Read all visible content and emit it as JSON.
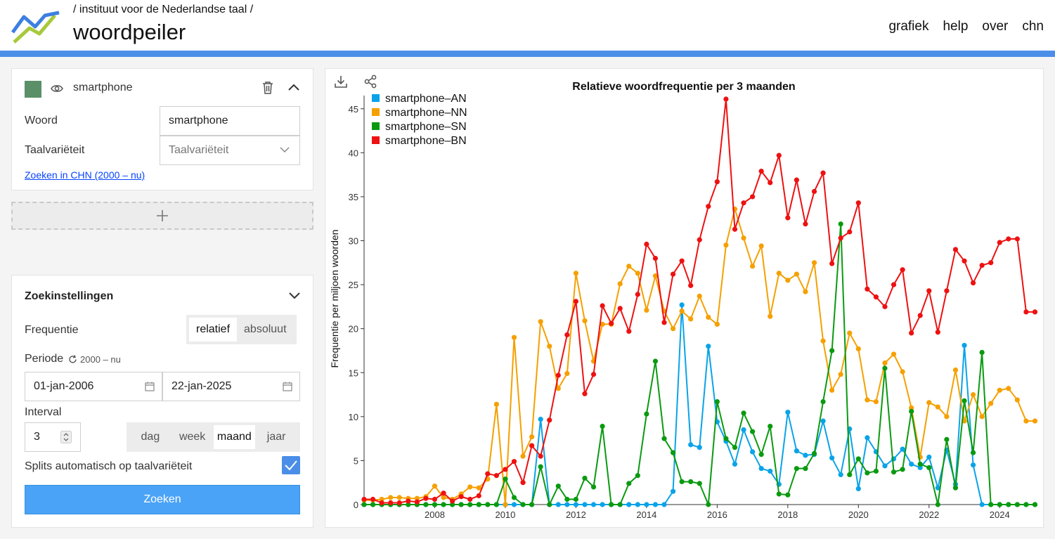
{
  "header": {
    "breadcrumb": "/ instituut voor de Nederlandse taal /",
    "title": "woordpeiler",
    "nav": [
      "grafiek",
      "help",
      "over",
      "chn"
    ]
  },
  "word_panel": {
    "word_name": "smartphone",
    "swatch_color": "#5a8f68",
    "word_label": "Woord",
    "word_value": "smartphone",
    "variety_label": "Taalvariëteit",
    "variety_placeholder": "Taalvariëteit",
    "chn_link": "Zoeken in CHN (2000 – nu)"
  },
  "settings": {
    "title": "Zoekinstellingen",
    "frequency_label": "Frequentie",
    "frequency_options": [
      "relatief",
      "absoluut"
    ],
    "frequency_selected": "relatief",
    "period_label": "Periode",
    "period_reset": "2000 – nu",
    "date_from": "01-jan-2006",
    "date_to": "22-jan-2025",
    "interval_label": "Interval",
    "interval_value": "3",
    "interval_options": [
      "dag",
      "week",
      "maand",
      "jaar"
    ],
    "interval_selected": "maand",
    "split_label": "Splits automatisch op taalvariëteit",
    "split_checked": true,
    "search_button": "Zoeken"
  },
  "chart_data": {
    "type": "line",
    "title": "Relatieve woordfrequentie per 3 maanden",
    "ylabel": "Frequentie per miljoen woorden",
    "xlabel": "",
    "xlim": [
      2006.0,
      2025.05
    ],
    "ylim": [
      0,
      46.5
    ],
    "x_ticks": [
      "2008",
      "2010",
      "2012",
      "2014",
      "2016",
      "2018",
      "2020",
      "2022",
      "2024"
    ],
    "y_ticks": [
      "0",
      "5",
      "10",
      "15",
      "20",
      "25",
      "30",
      "35",
      "40",
      "45"
    ],
    "legend_position": "top-left",
    "x": [
      2006.0,
      2006.25,
      2006.5,
      2006.75,
      2007.0,
      2007.25,
      2007.5,
      2007.75,
      2008.0,
      2008.25,
      2008.5,
      2008.75,
      2009.0,
      2009.25,
      2009.5,
      2009.75,
      2010.0,
      2010.25,
      2010.5,
      2010.75,
      2011.0,
      2011.25,
      2011.5,
      2011.75,
      2012.0,
      2012.25,
      2012.5,
      2012.75,
      2013.0,
      2013.25,
      2013.5,
      2013.75,
      2014.0,
      2014.25,
      2014.5,
      2014.75,
      2015.0,
      2015.25,
      2015.5,
      2015.75,
      2016.0,
      2016.25,
      2016.5,
      2016.75,
      2017.0,
      2017.25,
      2017.5,
      2017.75,
      2018.0,
      2018.25,
      2018.5,
      2018.75,
      2019.0,
      2019.25,
      2019.5,
      2019.75,
      2020.0,
      2020.25,
      2020.5,
      2020.75,
      2021.0,
      2021.25,
      2021.5,
      2021.75,
      2022.0,
      2022.25,
      2022.5,
      2022.75,
      2023.0,
      2023.25,
      2023.5,
      2023.75,
      2024.0,
      2024.25,
      2024.5,
      2024.75,
      2025.0
    ],
    "series": [
      {
        "name": "smartphone–AN",
        "color": "#0aa3e8",
        "values": [
          0,
          0,
          0,
          0,
          0,
          0,
          0,
          0,
          0,
          0,
          0,
          0,
          0,
          0,
          0,
          0,
          0,
          0,
          0,
          0,
          9.7,
          0,
          0,
          0,
          0,
          0,
          0,
          0,
          0,
          0,
          0,
          0,
          0,
          0,
          0,
          1.5,
          22.7,
          6.8,
          6.5,
          18,
          9.4,
          7.2,
          4.6,
          8.5,
          6,
          4.1,
          3.8,
          2.3,
          10.5,
          6.1,
          5.6,
          5.7,
          9.5,
          5.3,
          3.4,
          8.6,
          1.8,
          7.6,
          6,
          4.4,
          5.2,
          6.3,
          4.6,
          4.2,
          5.4,
          1.9,
          6.2,
          2.3,
          18.1,
          4.5,
          0,
          0,
          0,
          0,
          0,
          0,
          0
        ]
      },
      {
        "name": "smartphone–NN",
        "color": "#f5a000",
        "values": [
          0.5,
          0.5,
          0.6,
          0.8,
          0.8,
          0.7,
          0.7,
          0.9,
          2.1,
          0.8,
          0.6,
          1.2,
          2,
          1.9,
          2.9,
          11.4,
          0,
          19,
          5.5,
          7.7,
          20.8,
          18,
          13.2,
          14.9,
          26.3,
          20.9,
          16.3,
          20.5,
          20.5,
          25.1,
          27.1,
          26.3,
          22.1,
          26,
          22,
          20,
          22,
          21.1,
          23.7,
          21.3,
          20.5,
          29.5,
          33.6,
          30.3,
          27.1,
          29.4,
          21.4,
          26.3,
          25.5,
          26.2,
          24.2,
          27.5,
          18.6,
          13,
          14.8,
          19.5,
          17.7,
          11.9,
          11.7,
          16.1,
          17.1,
          15.1,
          11,
          5.4,
          11.6,
          11.1,
          10,
          15.3,
          9.5,
          12.5,
          10,
          11.5,
          13,
          13.2,
          11.9,
          9.5,
          9.5
        ]
      },
      {
        "name": "smartphone–SN",
        "color": "#0a9a10",
        "values": [
          0,
          0,
          0,
          0,
          0,
          0,
          0,
          0,
          0,
          0,
          0,
          0,
          0,
          0,
          0,
          0,
          2.9,
          0.8,
          0,
          0,
          4.3,
          0,
          2.1,
          0.6,
          0.6,
          3,
          2,
          8.9,
          0,
          0,
          2.4,
          3.3,
          10.3,
          16.3,
          7.5,
          5.9,
          2.6,
          2.6,
          2.4,
          0,
          11.7,
          7.5,
          6.5,
          10.4,
          8.3,
          5.7,
          8.9,
          1.2,
          1.1,
          4.1,
          4.1,
          5.8,
          11.7,
          17.5,
          31.9,
          3.4,
          5.2,
          3.6,
          3.8,
          15.5,
          3.7,
          4,
          10.6,
          4.6,
          4.2,
          0,
          7.4,
          1.9,
          11.8,
          5.9,
          17.3,
          0,
          0,
          0,
          0,
          0,
          0
        ]
      },
      {
        "name": "smartphone–BN",
        "color": "#ee1111",
        "values": [
          0.6,
          0.6,
          0.2,
          0.2,
          0.2,
          0.4,
          0.3,
          0.7,
          0.6,
          1.3,
          0.4,
          0.9,
          0.6,
          1,
          3.5,
          3.3,
          4,
          4.9,
          2.5,
          6.7,
          5.5,
          9.6,
          14.7,
          19.3,
          23.1,
          12.6,
          14.8,
          22.6,
          20.6,
          22.3,
          19.7,
          23.9,
          29.6,
          28,
          20.7,
          26.2,
          27.7,
          24.9,
          30.1,
          33.9,
          36.7,
          46.1,
          31.3,
          34.3,
          35,
          37.9,
          36.6,
          39.7,
          32.6,
          36.9,
          31.9,
          35.6,
          37.7,
          27.4,
          30.3,
          31,
          34.3,
          24.5,
          23.6,
          22.5,
          25,
          26.7,
          19.5,
          21.5,
          24.3,
          19.6,
          24.3,
          29,
          27.7,
          25.2,
          27.2,
          27.5,
          29.8,
          30.2,
          30.2,
          21.9,
          21.9
        ]
      }
    ]
  }
}
